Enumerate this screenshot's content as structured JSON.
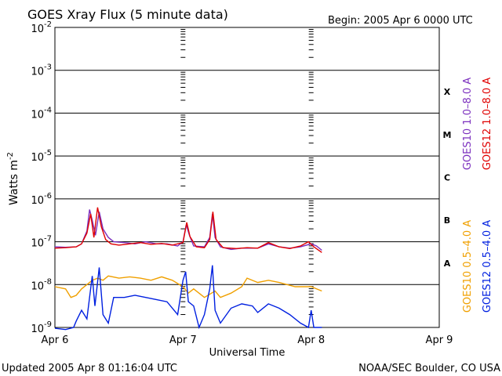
{
  "chart_data": {
    "type": "line",
    "title": "GOES Xray Flux (5 minute data)",
    "begin_label": "Begin:  2005 Apr 6 0000 UTC",
    "xlabel": "Universal Time",
    "ylabel_main": "Watts m",
    "ylabel_sup": "-2",
    "updated": "Updated 2005 Apr  8 01:16:04 UTC",
    "credit": "NOAA/SEC Boulder, CO USA",
    "x_unit": "hours since Apr 6 0000 UTC",
    "xlim": [
      0,
      72
    ],
    "ylim_exponent": [
      -9,
      -2
    ],
    "log_scale": true,
    "x_ticks": [
      {
        "label": "Apr 6",
        "hour": 0
      },
      {
        "label": "Apr 7",
        "hour": 24
      },
      {
        "label": "Apr 8",
        "hour": 48
      },
      {
        "label": "Apr 9",
        "hour": 72
      }
    ],
    "y_ticks": [
      {
        "base": "10",
        "exp": "-9",
        "e": -9
      },
      {
        "base": "10",
        "exp": "-8",
        "e": -8
      },
      {
        "base": "10",
        "exp": "-7",
        "e": -7
      },
      {
        "base": "10",
        "exp": "-6",
        "e": -6
      },
      {
        "base": "10",
        "exp": "-5",
        "e": -5
      },
      {
        "base": "10",
        "exp": "-4",
        "e": -4
      },
      {
        "base": "10",
        "exp": "-3",
        "e": -3
      },
      {
        "base": "10",
        "exp": "-2",
        "e": -2
      }
    ],
    "flare_classes": [
      {
        "label": "A",
        "e": -7.5
      },
      {
        "label": "B",
        "e": -6.5
      },
      {
        "label": "C",
        "e": -5.5
      },
      {
        "label": "M",
        "e": -4.5
      },
      {
        "label": "X",
        "e": -3.5
      }
    ],
    "series": [
      {
        "name": "GOES10 1.0–8.0 A",
        "color": "#7b2fbe",
        "points": [
          [
            0,
            -7.12
          ],
          [
            2,
            -7.13
          ],
          [
            4,
            -7.12
          ],
          [
            5,
            -7.05
          ],
          [
            6,
            -6.75
          ],
          [
            6.5,
            -6.25
          ],
          [
            7,
            -6.5
          ],
          [
            7.6,
            -6.85
          ],
          [
            8.3,
            -6.3
          ],
          [
            9,
            -6.7
          ],
          [
            10,
            -6.9
          ],
          [
            11,
            -7.0
          ],
          [
            13,
            -7.02
          ],
          [
            15,
            -7.05
          ],
          [
            17,
            -7.0
          ],
          [
            19,
            -7.05
          ],
          [
            21,
            -7.05
          ],
          [
            23,
            -7.1
          ],
          [
            24,
            -7.0
          ],
          [
            24.6,
            -6.6
          ],
          [
            25.2,
            -6.85
          ],
          [
            26,
            -7.1
          ],
          [
            28,
            -7.12
          ],
          [
            29,
            -6.9
          ],
          [
            29.5,
            -6.35
          ],
          [
            30,
            -6.9
          ],
          [
            31,
            -7.12
          ],
          [
            33,
            -7.18
          ],
          [
            35,
            -7.15
          ],
          [
            38,
            -7.15
          ],
          [
            40,
            -7.05
          ],
          [
            42,
            -7.12
          ],
          [
            44,
            -7.15
          ],
          [
            46,
            -7.12
          ],
          [
            48,
            -7.05
          ],
          [
            49,
            -7.1
          ],
          [
            50,
            -7.2
          ]
        ]
      },
      {
        "name": "GOES12 1.0–8.0 A",
        "color": "#e00000",
        "points": [
          [
            0,
            -7.15
          ],
          [
            2,
            -7.14
          ],
          [
            4,
            -7.12
          ],
          [
            5,
            -7.05
          ],
          [
            6,
            -6.8
          ],
          [
            6.7,
            -6.35
          ],
          [
            7.3,
            -6.9
          ],
          [
            8,
            -6.2
          ],
          [
            8.7,
            -6.65
          ],
          [
            9.5,
            -6.95
          ],
          [
            10.5,
            -7.05
          ],
          [
            12,
            -7.08
          ],
          [
            14,
            -7.05
          ],
          [
            16,
            -7.02
          ],
          [
            18,
            -7.06
          ],
          [
            20,
            -7.04
          ],
          [
            22,
            -7.08
          ],
          [
            24,
            -7.02
          ],
          [
            24.7,
            -6.55
          ],
          [
            25.3,
            -6.88
          ],
          [
            26.5,
            -7.12
          ],
          [
            28,
            -7.14
          ],
          [
            29,
            -6.95
          ],
          [
            29.6,
            -6.3
          ],
          [
            30.2,
            -6.95
          ],
          [
            31.5,
            -7.14
          ],
          [
            34,
            -7.16
          ],
          [
            36,
            -7.14
          ],
          [
            38,
            -7.15
          ],
          [
            40,
            -7.02
          ],
          [
            42,
            -7.12
          ],
          [
            44,
            -7.16
          ],
          [
            46,
            -7.1
          ],
          [
            47.5,
            -7.0
          ],
          [
            48.5,
            -7.12
          ],
          [
            50,
            -7.25
          ]
        ]
      },
      {
        "name": "GOES10 0.5–4.0 A",
        "color": "#f0a000",
        "points": [
          [
            0,
            -8.05
          ],
          [
            2,
            -8.1
          ],
          [
            3,
            -8.3
          ],
          [
            4,
            -8.25
          ],
          [
            5,
            -8.1
          ],
          [
            6,
            -8.0
          ],
          [
            7,
            -7.9
          ],
          [
            8,
            -7.85
          ],
          [
            9,
            -7.9
          ],
          [
            10,
            -7.8
          ],
          [
            12,
            -7.85
          ],
          [
            14,
            -7.82
          ],
          [
            16,
            -7.85
          ],
          [
            18,
            -7.9
          ],
          [
            20,
            -7.82
          ],
          [
            22,
            -7.9
          ],
          [
            24,
            -8.05
          ],
          [
            25,
            -8.2
          ],
          [
            26,
            -8.1
          ],
          [
            28,
            -8.3
          ],
          [
            30,
            -8.15
          ],
          [
            31,
            -8.3
          ],
          [
            33,
            -8.2
          ],
          [
            35,
            -8.05
          ],
          [
            36,
            -7.85
          ],
          [
            38,
            -7.95
          ],
          [
            40,
            -7.9
          ],
          [
            42,
            -7.95
          ],
          [
            45,
            -8.05
          ],
          [
            48,
            -8.05
          ],
          [
            50,
            -8.15
          ]
        ]
      },
      {
        "name": "GOES12 0.5–4.0 A",
        "color": "#0020e0",
        "points": [
          [
            0,
            -9.02
          ],
          [
            2,
            -9.05
          ],
          [
            3.5,
            -9.0
          ],
          [
            4,
            -8.85
          ],
          [
            5,
            -8.6
          ],
          [
            6,
            -8.8
          ],
          [
            7,
            -7.8
          ],
          [
            7.5,
            -8.5
          ],
          [
            8.3,
            -7.6
          ],
          [
            9,
            -8.7
          ],
          [
            10,
            -8.9
          ],
          [
            11,
            -8.3
          ],
          [
            13,
            -8.3
          ],
          [
            15,
            -8.25
          ],
          [
            17,
            -8.3
          ],
          [
            19,
            -8.35
          ],
          [
            21,
            -8.4
          ],
          [
            23,
            -8.7
          ],
          [
            24,
            -7.9
          ],
          [
            24.5,
            -7.7
          ],
          [
            25,
            -8.4
          ],
          [
            26,
            -8.5
          ],
          [
            27,
            -9.0
          ],
          [
            28,
            -8.7
          ],
          [
            29,
            -8.1
          ],
          [
            29.5,
            -7.55
          ],
          [
            30,
            -8.6
          ],
          [
            31,
            -8.9
          ],
          [
            33,
            -8.55
          ],
          [
            35,
            -8.45
          ],
          [
            37,
            -8.5
          ],
          [
            38,
            -8.65
          ],
          [
            40,
            -8.45
          ],
          [
            42,
            -8.55
          ],
          [
            44,
            -8.7
          ],
          [
            46,
            -8.9
          ],
          [
            47.5,
            -9.0
          ],
          [
            48,
            -8.6
          ],
          [
            48.5,
            -9.0
          ],
          [
            50,
            -9.0
          ]
        ]
      }
    ]
  }
}
